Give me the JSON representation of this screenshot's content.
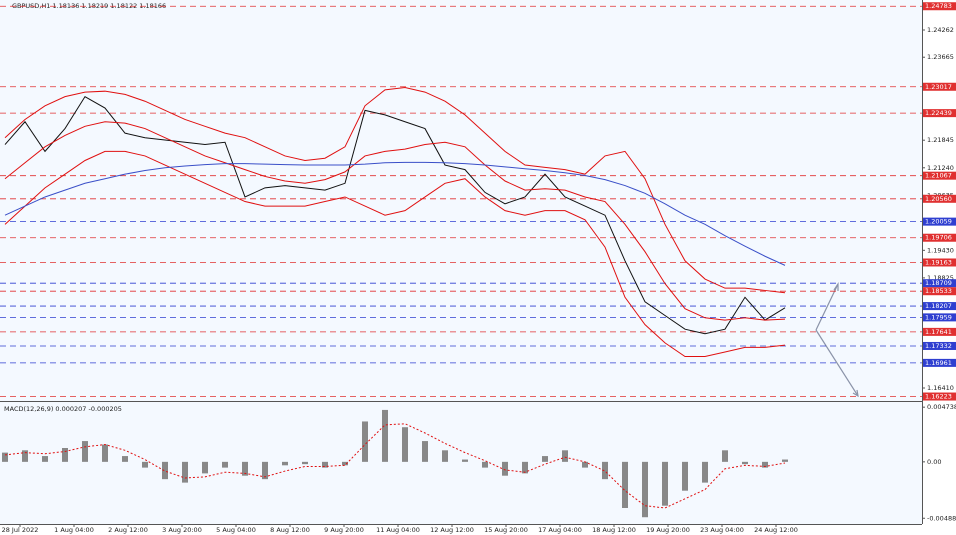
{
  "chart_data": {
    "type": "line",
    "title": "GBPUSD,H1  1.18136 1.18219 1.18122 1.18166",
    "ylim": [
      1.16147,
      1.2492
    ],
    "yticks": [
      1.24262,
      1.23665,
      1.21845,
      {
        "value": 1.2124,
        "label": "1.21240"
      },
      1.20635,
      {
        "value": 1.1943,
        "label": "1.19430"
      },
      1.18825,
      {
        "value": 1.1641,
        "label": "1.16410"
      }
    ],
    "levels": [
      {
        "value": 1.24783,
        "label": "1.24783",
        "color": "#e03030"
      },
      {
        "value": 1.23017,
        "label": "1.23017",
        "color": "#e03030"
      },
      {
        "value": 1.22439,
        "label": "1.22439",
        "color": "#e03030"
      },
      {
        "value": 1.21067,
        "label": "1.21067",
        "color": "#e03030"
      },
      {
        "value": 1.2056,
        "label": "1.20560",
        "color": "#e03030"
      },
      {
        "value": 1.20059,
        "label": "1.20059",
        "color": "#2f3fd0"
      },
      {
        "value": 1.19706,
        "label": "1.19706",
        "color": "#e03030"
      },
      {
        "value": 1.19163,
        "label": "1.19163",
        "color": "#e03030"
      },
      {
        "value": 1.18709,
        "label": "1.18709",
        "color": "#2f3fd0"
      },
      {
        "value": 1.18533,
        "label": "1.18533",
        "color": "#e03030"
      },
      {
        "value": 1.18207,
        "label": "1.18207",
        "color": "#2f3fd0"
      },
      {
        "value": 1.17959,
        "label": "1.17959",
        "color": "#2f3fd0"
      },
      {
        "value": 1.17641,
        "label": "1.17641",
        "color": "#e03030"
      },
      {
        "value": 1.17332,
        "label": "1.17332",
        "color": "#2f3fd0"
      },
      {
        "value": 1.16961,
        "label": "1.16961",
        "color": "#2f3fd0"
      },
      {
        "value": 1.16223,
        "label": "1.16223",
        "color": "#e03030"
      }
    ],
    "series": [
      {
        "name": "GBPUSD",
        "color": "#111111",
        "values": [
          1.2175,
          1.2225,
          1.216,
          1.221,
          1.228,
          1.2255,
          1.22,
          1.219,
          1.2185,
          1.218,
          1.2175,
          1.218,
          1.206,
          1.208,
          1.2085,
          1.208,
          1.2075,
          1.209,
          1.225,
          1.224,
          1.2225,
          1.221,
          1.213,
          1.212,
          1.207,
          1.2045,
          1.206,
          1.211,
          1.206,
          1.204,
          1.202,
          1.192,
          1.183,
          1.18,
          1.177,
          1.176,
          1.177,
          1.184,
          1.179,
          1.1817
        ]
      },
      {
        "name": "BB upper",
        "color": "#e01010",
        "values": [
          1.219,
          1.223,
          1.226,
          1.228,
          1.229,
          1.2292,
          1.2285,
          1.227,
          1.225,
          1.223,
          1.2215,
          1.22,
          1.219,
          1.217,
          1.215,
          1.214,
          1.2145,
          1.217,
          1.226,
          1.2295,
          1.23,
          1.229,
          1.227,
          1.224,
          1.22,
          1.216,
          1.213,
          1.2125,
          1.212,
          1.211,
          1.215,
          1.216,
          1.21,
          1.2,
          1.192,
          1.188,
          1.186,
          1.186,
          1.1855,
          1.185
        ]
      },
      {
        "name": "BB middle",
        "color": "#e01010",
        "values": [
          1.21,
          1.2135,
          1.217,
          1.2195,
          1.2215,
          1.2225,
          1.2222,
          1.221,
          1.219,
          1.217,
          1.215,
          1.2135,
          1.212,
          1.2105,
          1.2095,
          1.209,
          1.2098,
          1.2115,
          1.215,
          1.216,
          1.2165,
          1.2175,
          1.218,
          1.217,
          1.213,
          1.2095,
          1.2075,
          1.2078,
          1.2075,
          1.206,
          1.205,
          1.2,
          1.194,
          1.187,
          1.1815,
          1.1795,
          1.179,
          1.1795,
          1.179,
          1.1792
        ]
      },
      {
        "name": "BB lower",
        "color": "#e01010",
        "values": [
          1.2,
          1.204,
          1.208,
          1.211,
          1.214,
          1.216,
          1.216,
          1.215,
          1.213,
          1.211,
          1.209,
          1.207,
          1.205,
          1.204,
          1.204,
          1.204,
          1.205,
          1.206,
          1.204,
          1.202,
          1.203,
          1.206,
          1.209,
          1.21,
          1.206,
          1.203,
          1.202,
          1.203,
          1.203,
          1.201,
          1.195,
          1.184,
          1.178,
          1.174,
          1.171,
          1.171,
          1.172,
          1.173,
          1.173,
          1.1735
        ]
      },
      {
        "name": "MA",
        "color": "#3a4fc8",
        "values": [
          1.202,
          1.204,
          1.206,
          1.2075,
          1.209,
          1.21,
          1.211,
          1.2118,
          1.2124,
          1.2128,
          1.2131,
          1.2133,
          1.2133,
          1.2132,
          1.2131,
          1.213,
          1.213,
          1.213,
          1.2132,
          1.2135,
          1.2136,
          1.2136,
          1.2135,
          1.2133,
          1.213,
          1.2126,
          1.2122,
          1.2118,
          1.2113,
          1.2107,
          1.2098,
          1.2085,
          1.2068,
          1.2045,
          1.202,
          1.2,
          1.1975,
          1.1952,
          1.193,
          1.191
        ]
      }
    ],
    "macd": {
      "label": "MACD(12,26,9) 0.000207 -0.000205",
      "ylim": [
        -0.0053,
        0.0051
      ],
      "yticks": [
        0.004738,
        {
          "value": 0,
          "label": "0.00"
        },
        -0.004889
      ],
      "color": "#888888",
      "signal_color": "#e01010",
      "values": [
        0.0008,
        0.001,
        0.0005,
        0.0012,
        0.0018,
        0.0015,
        0.0005,
        -0.0005,
        -0.0015,
        -0.0018,
        -0.001,
        -0.0005,
        -0.0012,
        -0.0015,
        -0.0003,
        -0.0002,
        -0.0005,
        -0.0003,
        0.0035,
        0.0045,
        0.003,
        0.0018,
        0.001,
        0.0002,
        -0.0005,
        -0.0012,
        -0.001,
        0.0005,
        0.001,
        -0.0005,
        -0.0015,
        -0.004,
        -0.0048,
        -0.0038,
        -0.0025,
        -0.0018,
        0.001,
        -0.0002,
        -0.0005,
        0.0002
      ],
      "signal": [
        0.0006,
        0.0008,
        0.0007,
        0.0009,
        0.0013,
        0.0015,
        0.001,
        0.0002,
        -0.0008,
        -0.0014,
        -0.0013,
        -0.0009,
        -0.001,
        -0.0013,
        -0.0008,
        -0.0004,
        -0.0004,
        -0.0003,
        0.0015,
        0.0032,
        0.0033,
        0.0025,
        0.0016,
        0.0008,
        0.0001,
        -0.0007,
        -0.0009,
        -0.0002,
        0.0004,
        0.0,
        -0.0008,
        -0.0025,
        -0.0038,
        -0.004,
        -0.0032,
        -0.0024,
        -0.0006,
        -0.0003,
        -0.0004,
        -0.0001
      ]
    },
    "xtick_labels": [
      "28 Jul 2022",
      "1 Aug 04:00",
      "2 Aug 12:00",
      "3 Aug 20:00",
      "5 Aug 04:00",
      "8 Aug 12:00",
      "9 Aug 20:00",
      "11 Aug 04:00",
      "12 Aug 12:00",
      "15 Aug 20:00",
      "17 Aug 04:00",
      "18 Aug 12:00",
      "19 Aug 20:00",
      "23 Aug 04:00",
      "24 Aug 12:00"
    ]
  }
}
